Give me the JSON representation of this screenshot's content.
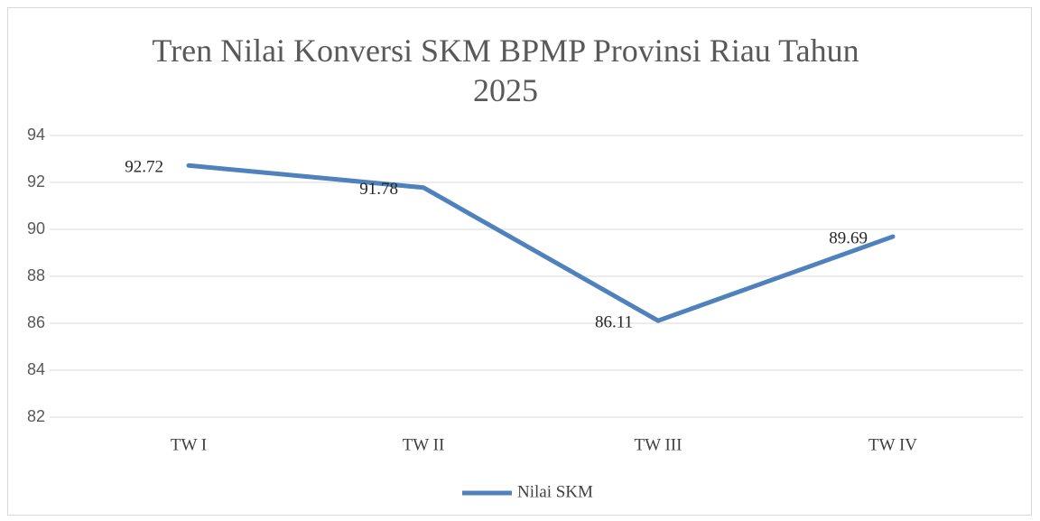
{
  "chart_data": {
    "type": "line",
    "title": "Tren Nilai Konversi SKM BPMP Provinsi Riau Tahun 2025",
    "categories": [
      "TW I",
      "TW II",
      "TW III",
      "TW IV"
    ],
    "series": [
      {
        "name": "Nilai SKM",
        "color": "#4f81bd",
        "values": [
          92.72,
          91.78,
          86.11,
          89.69
        ]
      }
    ],
    "ylim": [
      82,
      94
    ],
    "yticks": [
      82,
      84,
      86,
      88,
      90,
      92,
      94
    ],
    "grid": true,
    "legend": "bottom"
  }
}
